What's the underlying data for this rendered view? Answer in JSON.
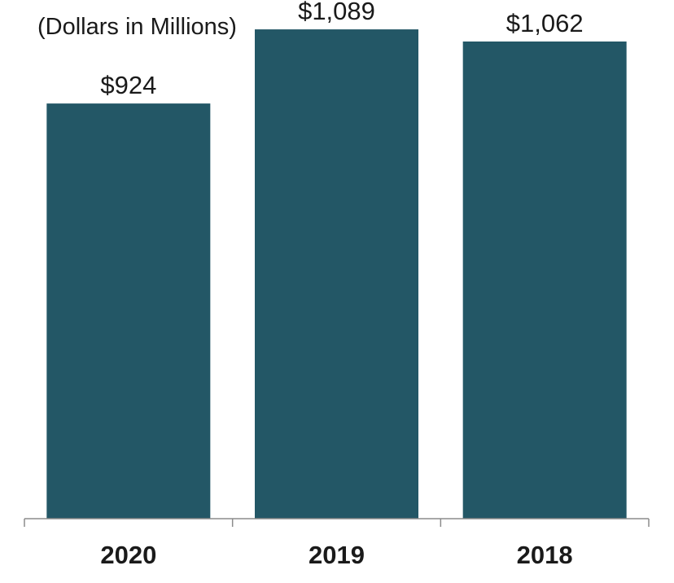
{
  "chart_data": {
    "type": "bar",
    "title": "",
    "subtitle": "(Dollars in Millions)",
    "xlabel": "",
    "ylabel": "",
    "categories": [
      "2020",
      "2019",
      "2018"
    ],
    "values": [
      924,
      1089,
      1062
    ],
    "data_labels": [
      "$924",
      "$1,089",
      "$1,062"
    ],
    "ylim": [
      0,
      1100
    ],
    "grid": false,
    "legend": "none",
    "colors": {
      "bar": "#235766",
      "axis": "#8c8c8c",
      "text": "#1a1a1a"
    }
  }
}
